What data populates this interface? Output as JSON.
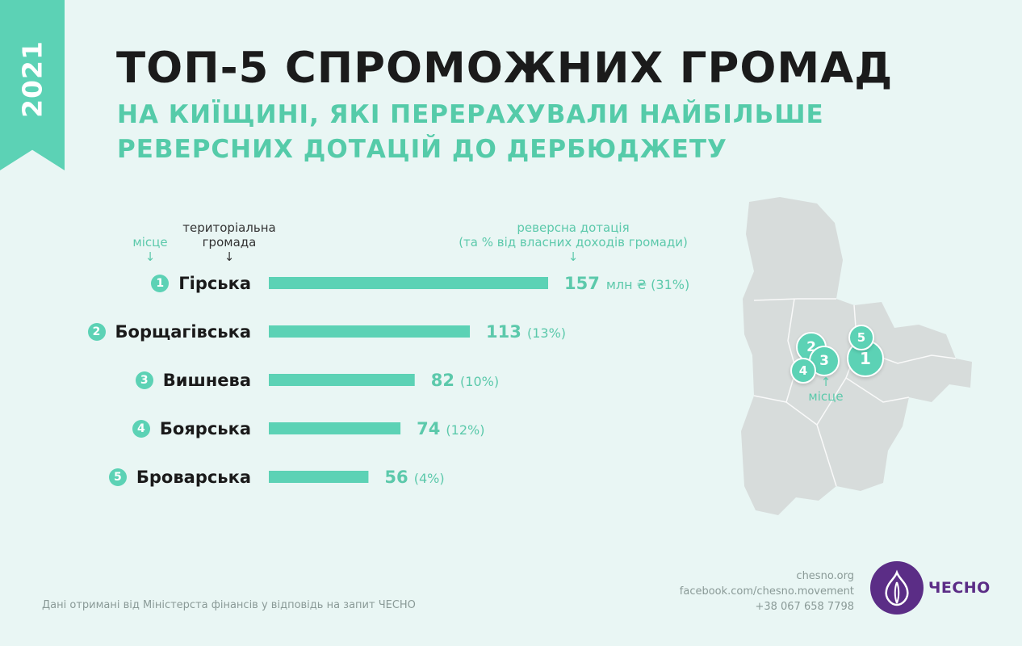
{
  "year": "2021",
  "title": "ТОП-5 СПРОМОЖНИХ ГРОМАД",
  "subtitle": "НА КИЇЩИНІ, ЯКІ ПЕРЕРАХУВАЛИ НАЙБІЛЬШЕ РЕВЕРСНИХ ДОТАЦІЙ ДО ДЕРБЮДЖЕТУ",
  "headers": {
    "place": "місце",
    "community": "територіальна громада",
    "value": "реверсна дотація",
    "value_note": "(та % від власних доходів громади)",
    "arrow": "↓"
  },
  "unit_label": "млн ₴",
  "chart_data": {
    "type": "bar",
    "orientation": "horizontal",
    "title": "ТОП-5 СПРОМОЖНИХ ГРОМАД",
    "categories": [
      "Гірська",
      "Борщагівська",
      "Вишнева",
      "Боярська",
      "Броварська"
    ],
    "ranks": [
      "1",
      "2",
      "3",
      "4",
      "5"
    ],
    "values": [
      157,
      113,
      82,
      74,
      56
    ],
    "percent_of_own_revenue": [
      "(31%)",
      "(13%)",
      "(10%)",
      "(12%)",
      "(4%)"
    ],
    "unit": "млн ₴",
    "xlim": [
      0,
      157
    ],
    "grid": false,
    "bar_color": "#5cd2b5"
  },
  "map": {
    "pins": [
      "1",
      "2",
      "3",
      "4",
      "5"
    ],
    "label": "місце",
    "arrow": "↑",
    "region_color": "#d7dcdb"
  },
  "footer": {
    "source": "Дані отримані від Міністерста фінансів у відповідь на запит ЧЕСНО",
    "site": "chesno.org",
    "facebook": "facebook.com/chesno.movement",
    "phone": "+38 067 658 7798",
    "logo_text": "ЧЕСНО"
  },
  "colors": {
    "accent": "#5cd2b5",
    "background": "#e9f6f4",
    "brand": "#5b2d86"
  }
}
